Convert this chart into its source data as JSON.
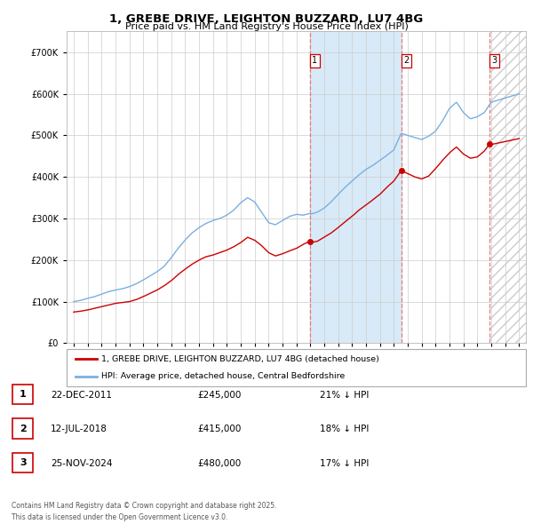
{
  "title": "1, GREBE DRIVE, LEIGHTON BUZZARD, LU7 4BG",
  "subtitle": "Price paid vs. HM Land Registry's House Price Index (HPI)",
  "legend_label_red": "1, GREBE DRIVE, LEIGHTON BUZZARD, LU7 4BG (detached house)",
  "legend_label_blue": "HPI: Average price, detached house, Central Bedfordshire",
  "footnote": "Contains HM Land Registry data © Crown copyright and database right 2025.\nThis data is licensed under the Open Government Licence v3.0.",
  "sales": [
    {
      "num": 1,
      "date": "22-DEC-2011",
      "price": 245000,
      "hpi_diff": "21% ↓ HPI"
    },
    {
      "num": 2,
      "date": "12-JUL-2018",
      "price": 415000,
      "hpi_diff": "18% ↓ HPI"
    },
    {
      "num": 3,
      "date": "25-NOV-2024",
      "price": 480000,
      "hpi_diff": "17% ↓ HPI"
    }
  ],
  "sale_dates_decimal": [
    2011.97,
    2018.53,
    2024.9
  ],
  "sale_prices": [
    245000,
    415000,
    480000
  ],
  "sale_marker_color": "#cc0000",
  "hpi_line_color": "#7aafe0",
  "price_line_color": "#cc0000",
  "bg_color": "#ffffff",
  "plot_bg_color": "#ffffff",
  "grid_color": "#cccccc",
  "shade_color": "#d8eaf7",
  "vline_color": "#e87070",
  "ylim": [
    0,
    750000
  ],
  "yticks": [
    0,
    100000,
    200000,
    300000,
    400000,
    500000,
    600000,
    700000
  ],
  "xlim_start": 1994.5,
  "xlim_end": 2027.5,
  "xticks": [
    1995,
    1996,
    1997,
    1998,
    1999,
    2000,
    2001,
    2002,
    2003,
    2004,
    2005,
    2006,
    2007,
    2008,
    2009,
    2010,
    2011,
    2012,
    2013,
    2014,
    2015,
    2016,
    2017,
    2018,
    2019,
    2020,
    2021,
    2022,
    2023,
    2024,
    2025,
    2026,
    2027
  ]
}
